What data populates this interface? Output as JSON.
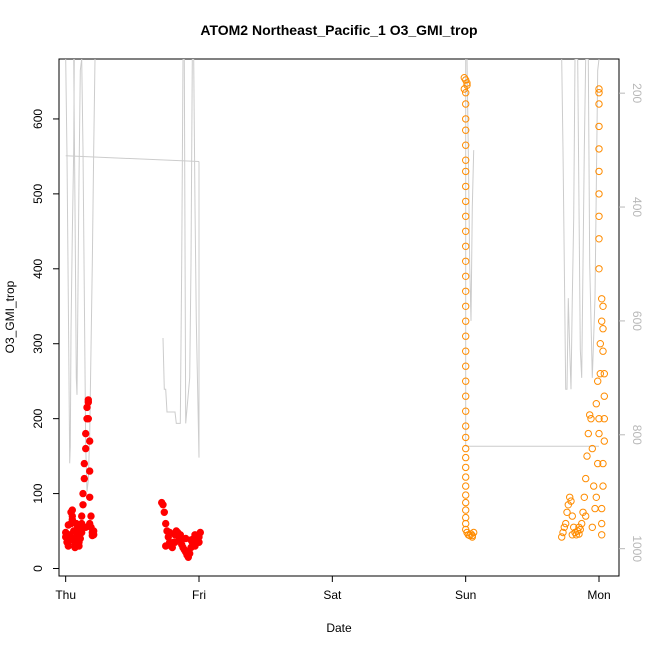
{
  "chart_data": {
    "type": "scatter",
    "title": "ATOM2 Northeast_Pacific_1 O3_GMI_trop",
    "xlabel": "Date",
    "ylabel": "O3_GMI_trop",
    "x_tick_labels": [
      "Thu",
      "Fri",
      "Sat",
      "Sun",
      "Mon"
    ],
    "x_range_days": [
      -0.05,
      4.15
    ],
    "ylim": [
      -10,
      680
    ],
    "y_ticks": [
      0,
      100,
      200,
      300,
      400,
      500,
      600
    ],
    "y2_ticks": [
      200,
      400,
      600,
      800,
      1000
    ],
    "y2_range": [
      1048,
      140
    ],
    "y2_axis_color": "#b8b8b8",
    "grid": false,
    "colors": {
      "red": "#ff0000",
      "orange": "#ff8c00",
      "gray": "#cccccc"
    },
    "series": [
      {
        "style": "filled",
        "color": "#ff0000",
        "points": [
          [
            0.0,
            48
          ],
          [
            0.0,
            42
          ],
          [
            0.01,
            35
          ],
          [
            0.02,
            30
          ],
          [
            0.03,
            38
          ],
          [
            0.03,
            45
          ],
          [
            0.04,
            60
          ],
          [
            0.04,
            75
          ],
          [
            0.05,
            78
          ],
          [
            0.05,
            65
          ],
          [
            0.06,
            50
          ],
          [
            0.06,
            40
          ],
          [
            0.07,
            33
          ],
          [
            0.07,
            28
          ],
          [
            0.08,
            35
          ],
          [
            0.08,
            48
          ],
          [
            0.09,
            55
          ],
          [
            0.09,
            42
          ],
          [
            0.1,
            35
          ],
          [
            0.1,
            30
          ],
          [
            0.11,
            40
          ],
          [
            0.11,
            52
          ],
          [
            0.12,
            60
          ],
          [
            0.12,
            70
          ],
          [
            0.13,
            85
          ],
          [
            0.13,
            100
          ],
          [
            0.14,
            120
          ],
          [
            0.14,
            140
          ],
          [
            0.15,
            160
          ],
          [
            0.15,
            180
          ],
          [
            0.16,
            200
          ],
          [
            0.16,
            215
          ],
          [
            0.17,
            225
          ],
          [
            0.17,
            222
          ],
          [
            0.17,
            200
          ],
          [
            0.18,
            170
          ],
          [
            0.18,
            130
          ],
          [
            0.18,
            95
          ],
          [
            0.19,
            70
          ],
          [
            0.19,
            55
          ],
          [
            0.2,
            48
          ],
          [
            0.2,
            44
          ],
          [
            0.21,
            50
          ],
          [
            0.21,
            45
          ],
          [
            0.02,
            58
          ],
          [
            0.05,
            70
          ],
          [
            0.08,
            60
          ],
          [
            0.12,
            48
          ],
          [
            0.15,
            55
          ],
          [
            0.18,
            60
          ],
          [
            0.72,
            88
          ],
          [
            0.73,
            85
          ],
          [
            0.74,
            75
          ],
          [
            0.75,
            60
          ],
          [
            0.76,
            50
          ],
          [
            0.77,
            42
          ],
          [
            0.78,
            35
          ],
          [
            0.79,
            30
          ],
          [
            0.8,
            28
          ],
          [
            0.81,
            35
          ],
          [
            0.82,
            45
          ],
          [
            0.83,
            50
          ],
          [
            0.84,
            48
          ],
          [
            0.85,
            42
          ],
          [
            0.86,
            38
          ],
          [
            0.87,
            32
          ],
          [
            0.88,
            28
          ],
          [
            0.89,
            25
          ],
          [
            0.9,
            22
          ],
          [
            0.91,
            18
          ],
          [
            0.92,
            15
          ],
          [
            0.93,
            20
          ],
          [
            0.94,
            28
          ],
          [
            0.95,
            35
          ],
          [
            0.96,
            40
          ],
          [
            0.97,
            45
          ],
          [
            0.98,
            42
          ],
          [
            0.99,
            38
          ],
          [
            1.0,
            42
          ],
          [
            1.01,
            48
          ],
          [
            0.75,
            30
          ],
          [
            0.78,
            48
          ],
          [
            0.82,
            35
          ],
          [
            0.86,
            45
          ],
          [
            0.9,
            40
          ],
          [
            0.94,
            38
          ],
          [
            0.97,
            30
          ],
          [
            1.0,
            35
          ]
        ]
      },
      {
        "style": "open",
        "color": "#ff8c00",
        "points": [
          [
            2.99,
            655
          ],
          [
            3.0,
            652
          ],
          [
            3.01,
            645
          ],
          [
            2.99,
            640
          ],
          [
            3.0,
            635
          ],
          [
            3.01,
            648
          ],
          [
            3.0,
            620
          ],
          [
            3.0,
            600
          ],
          [
            3.0,
            585
          ],
          [
            3.0,
            565
          ],
          [
            3.0,
            545
          ],
          [
            3.0,
            530
          ],
          [
            3.0,
            510
          ],
          [
            3.0,
            490
          ],
          [
            3.0,
            470
          ],
          [
            3.0,
            450
          ],
          [
            3.0,
            430
          ],
          [
            3.0,
            410
          ],
          [
            3.0,
            390
          ],
          [
            3.0,
            370
          ],
          [
            3.0,
            350
          ],
          [
            3.0,
            330
          ],
          [
            3.0,
            310
          ],
          [
            3.0,
            290
          ],
          [
            3.0,
            270
          ],
          [
            3.0,
            250
          ],
          [
            3.0,
            230
          ],
          [
            3.0,
            210
          ],
          [
            3.0,
            190
          ],
          [
            3.0,
            175
          ],
          [
            3.0,
            160
          ],
          [
            3.0,
            148
          ],
          [
            3.0,
            135
          ],
          [
            3.0,
            122
          ],
          [
            3.0,
            110
          ],
          [
            3.0,
            98
          ],
          [
            3.0,
            88
          ],
          [
            3.0,
            78
          ],
          [
            3.0,
            68
          ],
          [
            3.0,
            60
          ],
          [
            3.0,
            52
          ],
          [
            3.01,
            48
          ],
          [
            3.02,
            45
          ],
          [
            3.03,
            44
          ],
          [
            3.04,
            46
          ],
          [
            3.05,
            44
          ],
          [
            3.06,
            48
          ],
          [
            3.05,
            42
          ],
          [
            3.72,
            42
          ],
          [
            3.73,
            48
          ],
          [
            3.74,
            55
          ],
          [
            3.75,
            60
          ],
          [
            3.76,
            75
          ],
          [
            3.77,
            85
          ],
          [
            3.78,
            95
          ],
          [
            3.79,
            90
          ],
          [
            3.8,
            70
          ],
          [
            3.81,
            55
          ],
          [
            3.82,
            48
          ],
          [
            3.83,
            45
          ],
          [
            3.84,
            50
          ],
          [
            3.85,
            46
          ],
          [
            3.86,
            52
          ],
          [
            3.87,
            60
          ],
          [
            3.88,
            75
          ],
          [
            3.89,
            95
          ],
          [
            3.9,
            120
          ],
          [
            3.91,
            150
          ],
          [
            3.92,
            180
          ],
          [
            3.93,
            205
          ],
          [
            3.94,
            200
          ],
          [
            3.95,
            160
          ],
          [
            3.96,
            110
          ],
          [
            3.97,
            80
          ],
          [
            3.98,
            95
          ],
          [
            3.99,
            140
          ],
          [
            4.0,
            200
          ],
          [
            4.01,
            260
          ],
          [
            4.01,
            300
          ],
          [
            4.02,
            330
          ],
          [
            4.02,
            360
          ],
          [
            4.03,
            350
          ],
          [
            4.03,
            320
          ],
          [
            4.03,
            290
          ],
          [
            4.04,
            260
          ],
          [
            4.04,
            230
          ],
          [
            4.04,
            200
          ],
          [
            4.04,
            170
          ],
          [
            4.03,
            140
          ],
          [
            4.03,
            110
          ],
          [
            4.02,
            80
          ],
          [
            4.02,
            60
          ],
          [
            4.02,
            45
          ],
          [
            4.0,
            400
          ],
          [
            4.0,
            440
          ],
          [
            4.0,
            470
          ],
          [
            4.0,
            500
          ],
          [
            4.0,
            530
          ],
          [
            4.0,
            560
          ],
          [
            4.0,
            590
          ],
          [
            4.0,
            620
          ],
          [
            4.0,
            640
          ],
          [
            4.0,
            635
          ],
          [
            3.8,
            45
          ],
          [
            3.85,
            55
          ],
          [
            3.9,
            70
          ],
          [
            3.95,
            55
          ],
          [
            4.0,
            180
          ],
          [
            3.98,
            220
          ],
          [
            3.99,
            250
          ]
        ]
      }
    ],
    "pressure_trace": {
      "color": "#cccccc",
      "segments": [
        [
          [
            0.0,
            140
          ],
          [
            0.01,
            310
          ],
          [
            0.02,
            560
          ],
          [
            0.03,
            850
          ],
          [
            0.035,
            820
          ],
          [
            0.04,
            620
          ],
          [
            0.05,
            450
          ],
          [
            0.06,
            300
          ],
          [
            0.065,
            140
          ]
        ],
        [
          [
            0.06,
            140
          ],
          [
            0.07,
            400
          ],
          [
            0.08,
            700
          ],
          [
            0.085,
            730
          ],
          [
            0.09,
            600
          ],
          [
            0.1,
            350
          ],
          [
            0.11,
            160
          ],
          [
            0.12,
            140
          ]
        ],
        [
          [
            0.12,
            140
          ],
          [
            0.13,
            300
          ],
          [
            0.14,
            550
          ],
          [
            0.15,
            820
          ],
          [
            0.16,
            900
          ],
          [
            0.17,
            880
          ],
          [
            0.18,
            800
          ],
          [
            0.19,
            650
          ],
          [
            0.2,
            500
          ],
          [
            0.21,
            300
          ],
          [
            0.22,
            140
          ]
        ],
        [
          [
            0.0,
            310
          ],
          [
            1.0,
            320
          ]
        ],
        [
          [
            0.73,
            630
          ],
          [
            0.74,
            720
          ],
          [
            0.75,
            720
          ],
          [
            0.76,
            760
          ],
          [
            0.82,
            760
          ],
          [
            0.83,
            780
          ],
          [
            0.86,
            780
          ],
          [
            0.87,
            500
          ],
          [
            0.88,
            140
          ],
          [
            0.89,
            140
          ],
          [
            0.9,
            780
          ],
          [
            0.93,
            700
          ],
          [
            0.94,
            500
          ],
          [
            0.95,
            140
          ],
          [
            0.96,
            140
          ],
          [
            0.97,
            400
          ],
          [
            0.98,
            600
          ],
          [
            1.0,
            840
          ],
          [
            1.0,
            320
          ]
        ],
        [
          [
            3.0,
            140
          ],
          [
            3.0,
            820
          ]
        ],
        [
          [
            3.0,
            820
          ],
          [
            4.0,
            820
          ]
        ],
        [
          [
            3.01,
            140
          ],
          [
            3.02,
            300
          ],
          [
            3.03,
            500
          ],
          [
            3.04,
            600
          ],
          [
            3.05,
            400
          ],
          [
            3.06,
            300
          ]
        ],
        [
          [
            3.72,
            140
          ],
          [
            3.73,
            300
          ],
          [
            3.74,
            500
          ],
          [
            3.75,
            720
          ],
          [
            3.76,
            720
          ],
          [
            3.77,
            560
          ],
          [
            3.78,
            650
          ],
          [
            3.79,
            720
          ],
          [
            3.8,
            560
          ],
          [
            3.81,
            420
          ],
          [
            3.82,
            140
          ],
          [
            3.84,
            140
          ],
          [
            3.85,
            400
          ],
          [
            3.86,
            650
          ],
          [
            3.87,
            700
          ],
          [
            3.88,
            500
          ],
          [
            3.89,
            300
          ],
          [
            3.9,
            140
          ],
          [
            3.92,
            140
          ],
          [
            3.93,
            500
          ],
          [
            3.95,
            700
          ],
          [
            3.97,
            560
          ],
          [
            3.99,
            160
          ],
          [
            4.0,
            140
          ]
        ]
      ]
    }
  }
}
